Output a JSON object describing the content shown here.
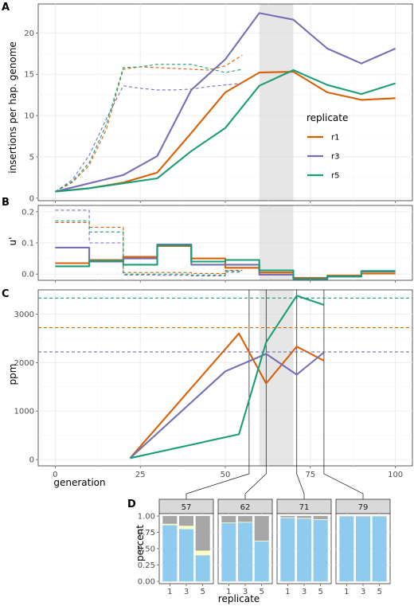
{
  "chart_data": [
    {
      "panel": "A",
      "type": "line",
      "xlabel": "",
      "ylabel": "insertions per hap. genome",
      "xlim": [
        -5,
        105
      ],
      "ylim": [
        -0.3,
        23.5
      ],
      "xticks": [
        0,
        25,
        50,
        75,
        100
      ],
      "yticks": [
        0,
        5,
        10,
        15,
        20
      ],
      "grid": true,
      "shade_x": [
        60,
        70
      ],
      "legend": {
        "title": "replicate",
        "position": "right",
        "entries": [
          "r1",
          "r3",
          "r5"
        ]
      },
      "series": [
        {
          "name": "r1",
          "style": "solid",
          "color": "#D95F02",
          "x": [
            0,
            10,
            20,
            30,
            40,
            50,
            60,
            70,
            80,
            90,
            100
          ],
          "y": [
            0.8,
            1.2,
            1.9,
            3.1,
            7.9,
            12.8,
            15.2,
            15.3,
            12.8,
            11.9,
            12.1
          ]
        },
        {
          "name": "r3",
          "style": "solid",
          "color": "#7570B3",
          "x": [
            0,
            10,
            20,
            30,
            40,
            50,
            60,
            70,
            80,
            90,
            100
          ],
          "y": [
            0.8,
            1.8,
            2.8,
            5.1,
            13.1,
            16.8,
            22.4,
            21.6,
            18.1,
            16.3,
            18.1
          ]
        },
        {
          "name": "r5",
          "style": "solid",
          "color": "#1B9E77",
          "x": [
            0,
            10,
            20,
            30,
            40,
            50,
            60,
            70,
            80,
            90,
            100
          ],
          "y": [
            0.8,
            1.2,
            1.8,
            2.4,
            5.7,
            8.5,
            13.6,
            15.5,
            13.7,
            12.6,
            13.9
          ]
        },
        {
          "name": "r1",
          "style": "dashed",
          "color": "#D95F02",
          "x": [
            0,
            5,
            10,
            15,
            20,
            25,
            30,
            35,
            40,
            45,
            50,
            55
          ],
          "y": [
            0.8,
            1.9,
            4.0,
            8.3,
            15.6,
            15.9,
            15.8,
            15.7,
            15.6,
            15.5,
            16.0,
            17.3
          ]
        },
        {
          "name": "r3",
          "style": "dashed",
          "color": "#7570B3",
          "x": [
            0,
            5,
            10,
            15,
            20,
            25,
            30,
            35,
            40,
            45,
            50,
            55
          ],
          "y": [
            0.8,
            2.2,
            5.2,
            9.6,
            13.6,
            13.3,
            13.1,
            13.1,
            13.2,
            13.5,
            13.7,
            13.9
          ]
        },
        {
          "name": "r5",
          "style": "dashed",
          "color": "#1B9E77",
          "x": [
            0,
            5,
            10,
            15,
            20,
            25,
            30,
            35,
            40,
            45,
            50,
            55
          ],
          "y": [
            0.8,
            2.0,
            4.3,
            8.9,
            15.8,
            15.9,
            16.2,
            16.2,
            16.2,
            15.7,
            15.2,
            15.6
          ]
        }
      ]
    },
    {
      "panel": "B",
      "type": "line",
      "xlabel": "",
      "ylabel": "u'",
      "xlim": [
        -5,
        105
      ],
      "ylim": [
        -0.02,
        0.22
      ],
      "yticks": [
        0.0,
        0.1,
        0.2
      ],
      "ytick_labels": [
        "0.0",
        "0.1",
        "0.2"
      ],
      "grid": true,
      "shade_x": [
        60,
        70
      ],
      "step": true,
      "series": [
        {
          "name": "r1",
          "style": "solid",
          "color": "#D95F02",
          "x": [
            0,
            10,
            20,
            30,
            40,
            50,
            60,
            70,
            80,
            90,
            100
          ],
          "y": [
            0.035,
            0.045,
            0.055,
            0.09,
            0.05,
            0.02,
            0.005,
            -0.012,
            -0.005,
            0.002,
            0.002
          ]
        },
        {
          "name": "r3",
          "style": "solid",
          "color": "#7570B3",
          "x": [
            0,
            10,
            20,
            30,
            40,
            50,
            60,
            70,
            80,
            90,
            100
          ],
          "y": [
            0.085,
            0.04,
            0.05,
            0.095,
            0.03,
            0.03,
            -0.002,
            -0.016,
            -0.008,
            0.008,
            0.008
          ]
        },
        {
          "name": "r5",
          "style": "solid",
          "color": "#1B9E77",
          "x": [
            0,
            10,
            20,
            30,
            40,
            50,
            60,
            70,
            80,
            90,
            100
          ],
          "y": [
            0.025,
            0.042,
            0.03,
            0.092,
            0.04,
            0.045,
            0.012,
            -0.015,
            -0.008,
            0.01,
            0.01
          ]
        },
        {
          "name": "r1",
          "style": "dashed",
          "color": "#D95F02",
          "x": [
            0,
            10,
            20,
            30,
            40,
            50,
            55
          ],
          "y": [
            0.165,
            0.15,
            0.005,
            0.005,
            0.002,
            0.012,
            0.012
          ]
        },
        {
          "name": "r3",
          "style": "dashed",
          "color": "#7570B3",
          "x": [
            0,
            10,
            20,
            30,
            40,
            50,
            55
          ],
          "y": [
            0.205,
            0.1,
            -0.003,
            -0.004,
            -0.006,
            0.006,
            0.006
          ]
        },
        {
          "name": "r5",
          "style": "dashed",
          "color": "#1B9E77",
          "x": [
            0,
            10,
            20,
            30,
            40,
            50,
            55
          ],
          "y": [
            0.17,
            0.135,
            0.0,
            0.0,
            -0.003,
            0.01,
            0.01
          ]
        }
      ]
    },
    {
      "panel": "C",
      "type": "line",
      "xlabel": "generation",
      "ylabel": "ppm",
      "xlim": [
        -5,
        105
      ],
      "ylim": [
        -130,
        3500
      ],
      "xticks": [
        0,
        25,
        50,
        75,
        100
      ],
      "yticks": [
        0,
        1000,
        2000,
        3000
      ],
      "grid": true,
      "shade_x": [
        60,
        70
      ],
      "vlines_x": [
        57,
        62,
        71,
        79
      ],
      "series": [
        {
          "name": "r1",
          "style": "solid",
          "color": "#D95F02",
          "x": [
            22,
            54,
            62,
            71,
            79
          ],
          "y": [
            30,
            2600,
            1570,
            2330,
            2040
          ]
        },
        {
          "name": "r3",
          "style": "solid",
          "color": "#7570B3",
          "x": [
            22,
            50,
            62,
            71,
            79
          ],
          "y": [
            30,
            1820,
            2180,
            1750,
            2210
          ]
        },
        {
          "name": "r5",
          "style": "solid",
          "color": "#1B9E77",
          "x": [
            22,
            54,
            62,
            71,
            79
          ],
          "y": [
            30,
            520,
            2420,
            3380,
            3190
          ]
        },
        {
          "name": "r1",
          "style": "dashed",
          "color": "#D95F02",
          "x": [
            -5,
            105
          ],
          "y": [
            2720,
            2720
          ]
        },
        {
          "name": "r3",
          "style": "dashed",
          "color": "#7570B3",
          "x": [
            -5,
            105
          ],
          "y": [
            2220,
            2220
          ]
        },
        {
          "name": "r5",
          "style": "dashed",
          "color": "#1B9E77",
          "x": [
            -5,
            105
          ],
          "y": [
            3330,
            3330
          ]
        }
      ]
    },
    {
      "panel": "D",
      "type": "bar",
      "stacked": true,
      "xlabel": "replicate",
      "ylabel": "percent",
      "ylim": [
        0,
        1.0
      ],
      "yticks": [
        0.0,
        0.25,
        0.5,
        0.75,
        1.0
      ],
      "ytick_labels": [
        "0.00",
        "0.25",
        "0.50",
        "0.75",
        "1.00"
      ],
      "categories": [
        "1",
        "3",
        "5"
      ],
      "stack_colors": [
        "#8FCBEF",
        "#FFFFC4",
        "#A6A6A6"
      ],
      "facets": [
        {
          "label": "57",
          "stacks": [
            [
              0.86,
              0.02,
              0.12
            ],
            [
              0.8,
              0.05,
              0.15
            ],
            [
              0.4,
              0.07,
              0.53
            ]
          ]
        },
        {
          "label": "62",
          "stacks": [
            [
              0.89,
              0.01,
              0.1
            ],
            [
              0.9,
              0.01,
              0.09
            ],
            [
              0.61,
              0.01,
              0.38
            ]
          ]
        },
        {
          "label": "71",
          "stacks": [
            [
              0.97,
              0.01,
              0.02
            ],
            [
              0.96,
              0.01,
              0.03
            ],
            [
              0.94,
              0.01,
              0.05
            ]
          ]
        },
        {
          "label": "79",
          "stacks": [
            [
              0.99,
              0.005,
              0.005
            ],
            [
              0.99,
              0.005,
              0.005
            ],
            [
              0.99,
              0.005,
              0.005
            ]
          ]
        }
      ]
    }
  ]
}
